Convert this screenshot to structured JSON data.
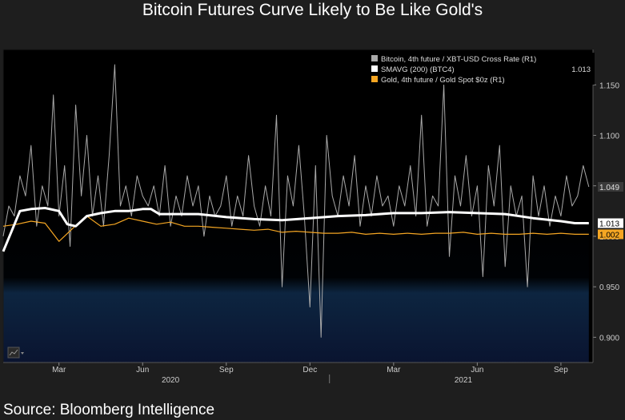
{
  "page": {
    "title": "Bitcoin Futures Curve Likely to Be Like Gold's",
    "source": "Source: Bloomberg Intelligence"
  },
  "chart_data": {
    "type": "line",
    "title": "Bitcoin Futures Curve Likely to Be Like Gold's",
    "xlabel": "",
    "ylabel": "",
    "axis_side": "right",
    "ylim": [
      0.875,
      1.185
    ],
    "y_ticks": [
      {
        "value": 0.9,
        "label": "0.900"
      },
      {
        "value": 0.95,
        "label": "0.950"
      },
      {
        "value": 1.0,
        "label": "1.000"
      },
      {
        "value": 1.05,
        "label": "1.050"
      },
      {
        "value": 1.1,
        "label": "1.100"
      },
      {
        "value": 1.15,
        "label": "1.150"
      }
    ],
    "x_range": [
      0,
      21.15
    ],
    "x_months": [
      {
        "t": 2,
        "label": "Mar"
      },
      {
        "t": 5,
        "label": "Jun"
      },
      {
        "t": 8,
        "label": "Sep"
      },
      {
        "t": 11,
        "label": "Dec"
      },
      {
        "t": 14,
        "label": "Mar"
      },
      {
        "t": 17,
        "label": "Jun"
      },
      {
        "t": 20,
        "label": "Sep"
      }
    ],
    "x_years": [
      {
        "t": 6,
        "label": "2020"
      },
      {
        "t": 16.5,
        "label": "2021"
      }
    ],
    "year_separator_t": 11.7,
    "legend_position": "top-right",
    "series": [
      {
        "name": "Bitcoin, 4th future / XBT-USD Cross Rate (R1)",
        "color": "#a9a9a9",
        "last_value": 1.049,
        "last_label": "1.049",
        "x": [
          0,
          0.2,
          0.4,
          0.6,
          0.8,
          1.0,
          1.2,
          1.4,
          1.6,
          1.8,
          2.0,
          2.2,
          2.4,
          2.6,
          2.8,
          3.0,
          3.2,
          3.4,
          3.6,
          3.8,
          4.0,
          4.2,
          4.4,
          4.6,
          4.8,
          5.0,
          5.2,
          5.4,
          5.6,
          5.8,
          6.0,
          6.2,
          6.4,
          6.6,
          6.8,
          7.0,
          7.2,
          7.4,
          7.6,
          7.8,
          8.0,
          8.2,
          8.4,
          8.6,
          8.8,
          9.0,
          9.2,
          9.4,
          9.6,
          9.8,
          10.0,
          10.2,
          10.4,
          10.6,
          10.8,
          11.0,
          11.2,
          11.4,
          11.6,
          11.8,
          12.0,
          12.2,
          12.4,
          12.6,
          12.8,
          13.0,
          13.2,
          13.4,
          13.6,
          13.8,
          14.0,
          14.2,
          14.4,
          14.6,
          14.8,
          15.0,
          15.2,
          15.4,
          15.6,
          15.8,
          16.0,
          16.2,
          16.4,
          16.6,
          16.8,
          17.0,
          17.2,
          17.4,
          17.6,
          17.8,
          18.0,
          18.2,
          18.4,
          18.6,
          18.8,
          19.0,
          19.2,
          19.4,
          19.6,
          19.8,
          20.0,
          20.2,
          20.4,
          20.6,
          20.8,
          21.0
        ],
        "values": [
          1.0,
          1.03,
          1.02,
          1.06,
          1.04,
          1.09,
          1.01,
          1.05,
          1.03,
          1.14,
          1.02,
          1.07,
          0.99,
          1.13,
          1.04,
          1.1,
          1.02,
          1.06,
          1.01,
          1.08,
          1.17,
          1.03,
          1.05,
          1.02,
          1.06,
          1.04,
          1.03,
          1.05,
          1.02,
          1.07,
          1.01,
          1.04,
          1.02,
          1.06,
          1.03,
          1.05,
          1.0,
          1.04,
          1.02,
          1.03,
          1.06,
          1.01,
          1.04,
          1.02,
          1.08,
          1.03,
          1.01,
          1.05,
          1.02,
          1.12,
          0.95,
          1.06,
          1.03,
          1.09,
          1.02,
          0.93,
          1.07,
          0.9,
          1.1,
          1.04,
          1.02,
          1.06,
          1.03,
          1.08,
          1.01,
          1.05,
          1.02,
          1.06,
          1.03,
          1.04,
          1.01,
          1.05,
          1.03,
          1.07,
          1.02,
          1.12,
          1.01,
          1.04,
          1.03,
          1.15,
          0.98,
          1.06,
          1.03,
          1.08,
          1.02,
          1.05,
          0.96,
          1.07,
          1.03,
          1.09,
          0.97,
          1.05,
          1.02,
          1.04,
          0.95,
          1.06,
          1.02,
          1.05,
          1.01,
          1.04,
          1.02,
          1.06,
          1.03,
          1.04,
          1.07,
          1.049
        ]
      },
      {
        "name": "SMAVG (200) (BTC4)",
        "color": "#ffffff",
        "last_value": 1.013,
        "last_label": "1.013",
        "x": [
          0,
          0.3,
          0.6,
          1.0,
          1.5,
          2.0,
          2.3,
          2.6,
          3.0,
          3.5,
          4.0,
          4.5,
          5.0,
          5.3,
          5.6,
          6.0,
          7.0,
          8.0,
          9.0,
          10.0,
          11.0,
          12.0,
          13.0,
          14.0,
          15.0,
          16.0,
          17.0,
          18.0,
          19.0,
          20.0,
          20.5,
          21.0
        ],
        "values": [
          0.985,
          1.005,
          1.025,
          1.027,
          1.028,
          1.025,
          1.012,
          1.01,
          1.02,
          1.023,
          1.025,
          1.025,
          1.027,
          1.027,
          1.022,
          1.022,
          1.022,
          1.019,
          1.017,
          1.016,
          1.018,
          1.02,
          1.021,
          1.023,
          1.023,
          1.024,
          1.023,
          1.022,
          1.018,
          1.015,
          1.013,
          1.013
        ]
      },
      {
        "name": "Gold, 4th future / Gold Spot $0z (R1)",
        "color": "#f5a623",
        "last_value": 1.002,
        "last_label": "1.002",
        "x": [
          0,
          0.5,
          1.0,
          1.5,
          2.0,
          2.5,
          3.0,
          3.5,
          4.0,
          4.5,
          5.0,
          5.5,
          6.0,
          6.5,
          7.0,
          7.5,
          8.0,
          8.5,
          9.0,
          9.5,
          10.0,
          10.5,
          11.0,
          11.5,
          12.0,
          12.5,
          13.0,
          13.5,
          14.0,
          14.5,
          15.0,
          15.5,
          16.0,
          16.5,
          17.0,
          17.5,
          18.0,
          18.5,
          19.0,
          19.5,
          20.0,
          20.5,
          21.0
        ],
        "values": [
          1.01,
          1.012,
          1.015,
          1.013,
          0.995,
          1.008,
          1.02,
          1.01,
          1.012,
          1.018,
          1.015,
          1.012,
          1.014,
          1.01,
          1.01,
          1.009,
          1.008,
          1.007,
          1.006,
          1.007,
          1.004,
          1.005,
          1.004,
          1.003,
          1.003,
          1.004,
          1.002,
          1.003,
          1.002,
          1.003,
          1.002,
          1.003,
          1.003,
          1.004,
          1.002,
          1.003,
          1.002,
          1.002,
          1.003,
          1.002,
          1.003,
          1.002,
          1.002
        ]
      }
    ]
  }
}
